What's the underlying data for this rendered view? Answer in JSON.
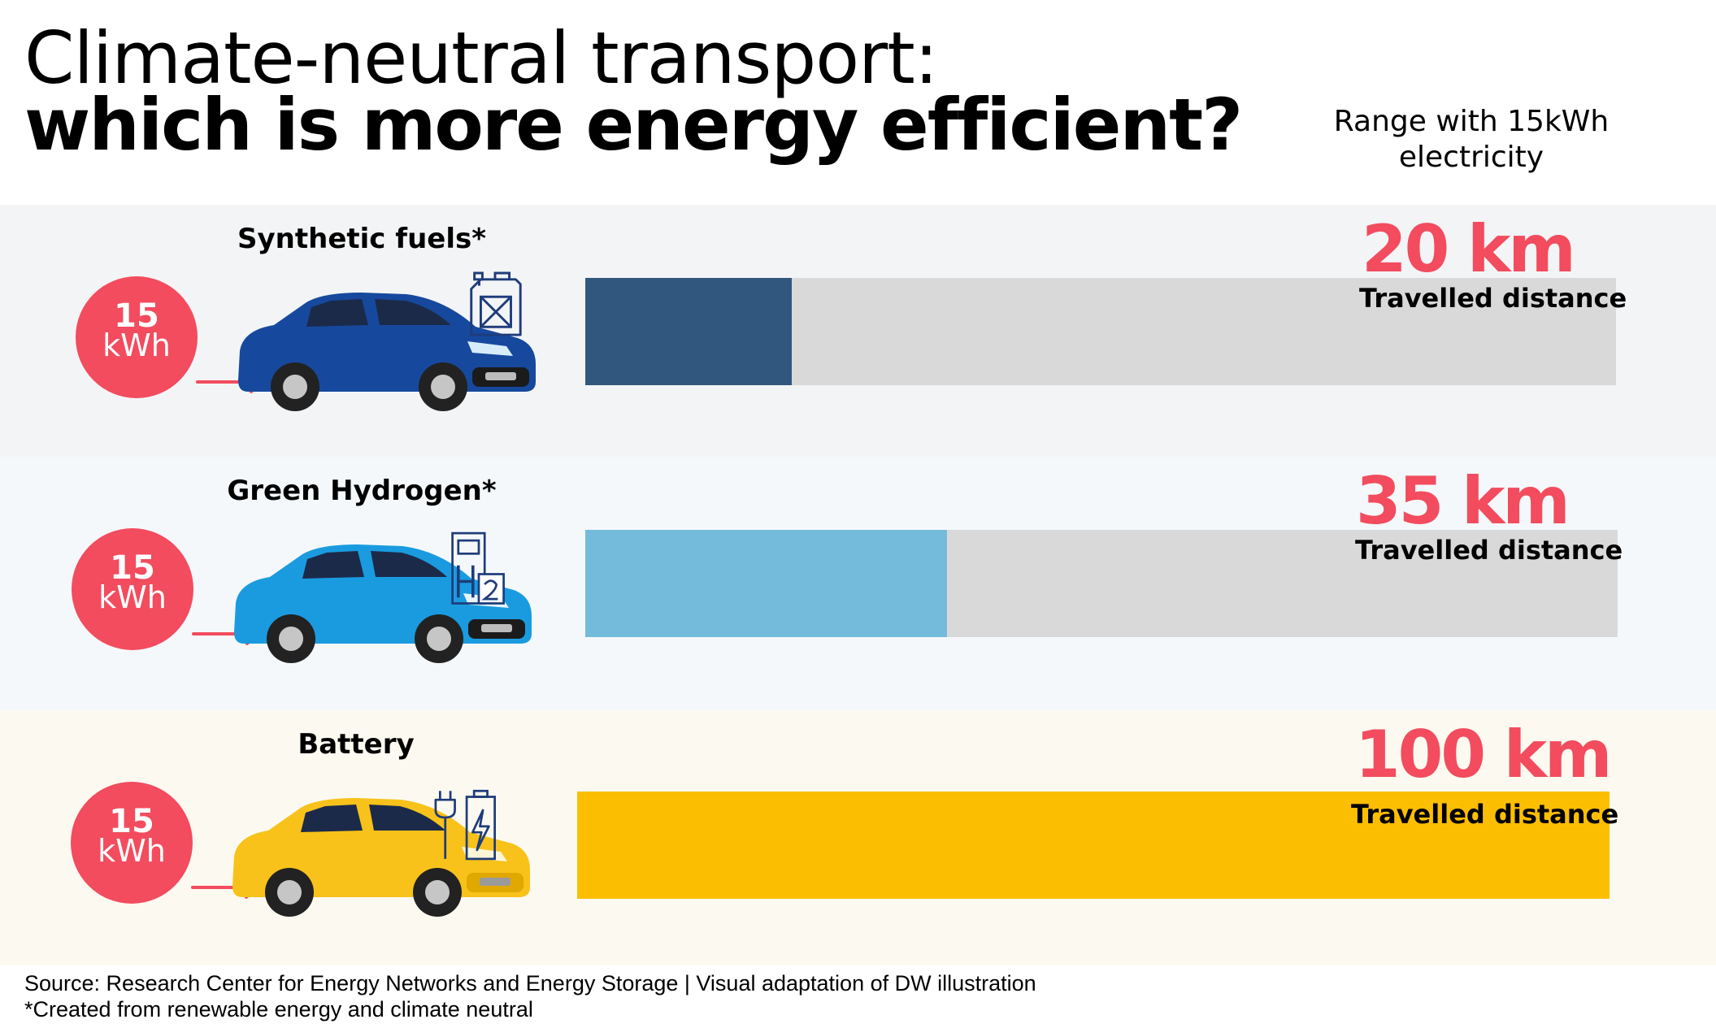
{
  "title_line1": "Climate-neutral transport:",
  "title_line2": "which is more energy efficient?",
  "range_note": "Range with 15kWh electricity",
  "chart_data": {
    "type": "bar",
    "orientation": "horizontal",
    "categories": [
      "Synthetic fuels*",
      "Green Hydrogen*",
      "Battery"
    ],
    "values": [
      20,
      35,
      100
    ],
    "value_labels": [
      "20 km",
      "35 km",
      "100 km"
    ],
    "unit": "km",
    "xlim": [
      0,
      100
    ],
    "grid": false,
    "legend": "none",
    "bar_sublabel": "Travelled distance",
    "input_energy": {
      "value": "15",
      "unit": "kWh"
    },
    "colors": [
      "#31577e",
      "#74bbdb",
      "#fcbe00"
    ],
    "track_color": "#d9d9d9",
    "icons": [
      "fuel-canister-icon",
      "hydrogen-pump-icon",
      "ev-charger-icon"
    ]
  },
  "source": "Source: Research Center for Energy Networks and Energy Storage | Visual adaptation of DW illustration",
  "footnote": "*Created from renewable energy and climate neutral"
}
